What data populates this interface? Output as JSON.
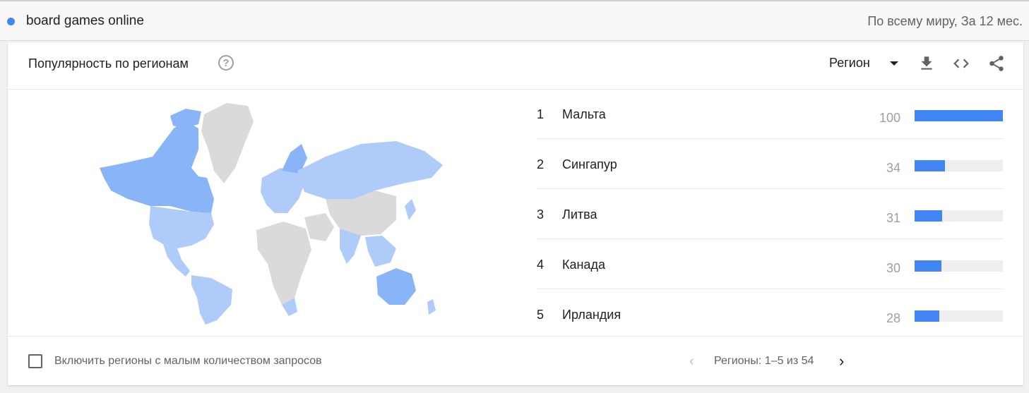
{
  "search": {
    "term": "board games online",
    "term_color": "#4285f4",
    "scope": "По всему миру, За 12 мес."
  },
  "card": {
    "title": "Популярность по регионам",
    "help_icon": "help-circle-icon",
    "region_select": "Регион",
    "tools": [
      "download-icon",
      "embed-code-icon",
      "share-icon"
    ]
  },
  "map": {
    "icon": "world-map",
    "colors": {
      "high": "#4285f4",
      "mid": "#8ab4f8",
      "low": "#aecbfa",
      "none": "#dadada"
    }
  },
  "chart_data": {
    "type": "bar",
    "categories": [
      "Мальта",
      "Сингапур",
      "Литва",
      "Канада",
      "Ирландия"
    ],
    "ranks": [
      "1",
      "2",
      "3",
      "4",
      "5"
    ],
    "values": [
      100,
      34,
      31,
      30,
      28
    ],
    "xlim": [
      0,
      100
    ],
    "bar_color": "#4285f4",
    "track_color": "#eeeeee"
  },
  "footer": {
    "checkbox_label": "Включить регионы с малым количеством запросов",
    "pager_label": "Регионы: 1–5 из 54"
  }
}
